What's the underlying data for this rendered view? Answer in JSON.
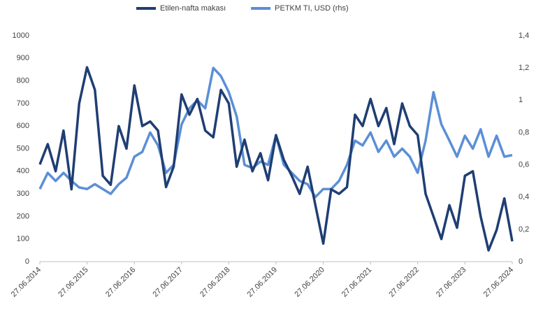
{
  "chart_data": {
    "type": "line",
    "x": [
      "27.06.2014",
      "27.08.2014",
      "27.10.2014",
      "27.12.2014",
      "27.02.2015",
      "27.04.2015",
      "27.06.2015",
      "27.08.2015",
      "27.10.2015",
      "27.12.2015",
      "27.02.2016",
      "27.04.2016",
      "27.06.2016",
      "27.08.2016",
      "27.10.2016",
      "27.12.2016",
      "27.02.2017",
      "27.04.2017",
      "27.06.2017",
      "27.08.2017",
      "27.10.2017",
      "27.12.2017",
      "27.02.2018",
      "27.04.2018",
      "27.06.2018",
      "27.08.2018",
      "27.10.2018",
      "27.12.2018",
      "27.02.2019",
      "27.04.2019",
      "27.06.2019",
      "27.08.2019",
      "27.10.2019",
      "27.12.2019",
      "27.02.2020",
      "27.04.2020",
      "27.06.2020",
      "27.08.2020",
      "27.10.2020",
      "27.12.2020",
      "27.02.2021",
      "27.04.2021",
      "27.06.2021",
      "27.08.2021",
      "27.10.2021",
      "27.12.2021",
      "27.02.2022",
      "27.04.2022",
      "27.06.2022",
      "27.08.2022",
      "27.10.2022",
      "27.12.2022",
      "27.02.2023",
      "27.04.2023",
      "27.06.2023",
      "27.08.2023",
      "27.10.2023",
      "27.12.2023",
      "27.02.2024",
      "27.04.2024",
      "27.06.2024"
    ],
    "series": [
      {
        "name": "Etilen-nafta makası",
        "color": "#1f3e73",
        "values": [
          430,
          520,
          400,
          580,
          320,
          700,
          860,
          760,
          380,
          340,
          600,
          500,
          780,
          600,
          620,
          580,
          330,
          420,
          740,
          650,
          720,
          580,
          550,
          760,
          700,
          420,
          540,
          400,
          480,
          360,
          560,
          450,
          380,
          300,
          420,
          250,
          80,
          320,
          300,
          330,
          650,
          600,
          720,
          600,
          680,
          520,
          700,
          600,
          560,
          300,
          200,
          100,
          250,
          150,
          380,
          400,
          200,
          50,
          140,
          280,
          90
        ]
      },
      {
        "name": "PETKM TI, USD (rhs)",
        "color": "#5b8fd6",
        "axis": "y2",
        "values": [
          0.45,
          0.55,
          0.5,
          0.55,
          0.5,
          0.46,
          0.45,
          0.48,
          0.45,
          0.42,
          0.48,
          0.52,
          0.65,
          0.68,
          0.8,
          0.72,
          0.55,
          0.6,
          0.85,
          0.95,
          1.0,
          0.95,
          1.2,
          1.15,
          1.05,
          0.9,
          0.6,
          0.58,
          0.62,
          0.6,
          0.78,
          0.6,
          0.55,
          0.5,
          0.48,
          0.4,
          0.45,
          0.45,
          0.5,
          0.6,
          0.75,
          0.72,
          0.8,
          0.68,
          0.75,
          0.65,
          0.7,
          0.65,
          0.55,
          0.75,
          1.05,
          0.85,
          0.75,
          0.65,
          0.78,
          0.7,
          0.82,
          0.65,
          0.78,
          0.65,
          0.66
        ]
      }
    ],
    "xlim": [
      "27.06.2014",
      "27.06.2024"
    ],
    "xticks": [
      "27.06.2014",
      "27.06.2015",
      "27.06.2016",
      "27.06.2017",
      "27.06.2018",
      "27.06.2019",
      "27.06.2020",
      "27.06.2021",
      "27.06.2022",
      "27.06.2023",
      "27.06.2024"
    ],
    "ylim": [
      0,
      1000
    ],
    "yticks": [
      0,
      100,
      200,
      300,
      400,
      500,
      600,
      700,
      800,
      900,
      1000
    ],
    "y2lim": [
      0,
      1.4
    ],
    "y2ticks": [
      0,
      {
        "value": 0.2,
        "label": "0,2"
      },
      {
        "value": 0.4,
        "label": "0,4"
      },
      {
        "value": 0.6,
        "label": "0,6"
      },
      {
        "value": 0.8,
        "label": "0,8"
      },
      1,
      {
        "value": 1.2,
        "label": "1,2"
      },
      {
        "value": 1.4,
        "label": "1,4"
      }
    ],
    "grid": false,
    "legend": "top"
  }
}
